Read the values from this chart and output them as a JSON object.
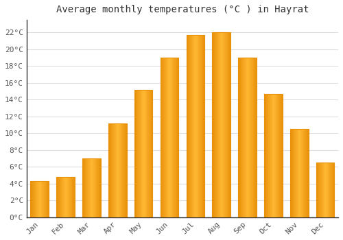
{
  "title": "Average monthly temperatures (°C ) in Hayrat",
  "months": [
    "Jan",
    "Feb",
    "Mar",
    "Apr",
    "May",
    "Jun",
    "Jul",
    "Aug",
    "Sep",
    "Oct",
    "Nov",
    "Dec"
  ],
  "values": [
    4.3,
    4.8,
    7.0,
    11.2,
    15.2,
    19.0,
    21.7,
    22.0,
    19.0,
    14.7,
    10.5,
    6.5
  ],
  "bar_color_center": "#FFB833",
  "bar_color_edge": "#E8900A",
  "ylim": [
    0,
    23.5
  ],
  "yticks": [
    0,
    2,
    4,
    6,
    8,
    10,
    12,
    14,
    16,
    18,
    20,
    22
  ],
  "ytick_labels": [
    "0°C",
    "2°C",
    "4°C",
    "6°C",
    "8°C",
    "10°C",
    "12°C",
    "14°C",
    "16°C",
    "18°C",
    "20°C",
    "22°C"
  ],
  "background_color": "#ffffff",
  "plot_bg_color": "#ffffff",
  "grid_color": "#dddddd",
  "title_fontsize": 10,
  "tick_fontsize": 8,
  "font_family": "monospace"
}
